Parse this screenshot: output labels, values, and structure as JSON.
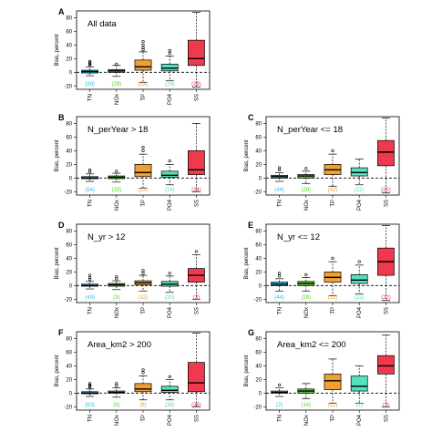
{
  "figure": {
    "ylabel": "Bias, percent",
    "categories": [
      "TN",
      "NOx",
      "TP",
      "PO4",
      "SS"
    ],
    "colors": {
      "TN": "#2ec4e6",
      "NOx": "#5ad12e",
      "TP": "#f0a032",
      "PO4": "#56e0bd",
      "SS": "#ef3a4d"
    }
  },
  "chart_data": [
    {
      "letter": "A",
      "title": "All data",
      "type": "box",
      "ylim": [
        -25,
        90
      ],
      "yticks": [
        -20,
        0,
        20,
        40,
        60,
        80
      ],
      "reference_line": 0,
      "categories": [
        "TN",
        "NOx",
        "TP",
        "PO4",
        "SS"
      ],
      "boxes": [
        {
          "cat": "TN",
          "lw": -5,
          "q1": -1,
          "med": 1,
          "q3": 3,
          "uw": 8,
          "outliers": [
            10,
            12,
            14,
            16
          ]
        },
        {
          "cat": "NOx",
          "lw": -6,
          "q1": 0,
          "med": 2,
          "q3": 4,
          "uw": 10,
          "outliers": [
            12
          ]
        },
        {
          "cat": "TP",
          "lw": -15,
          "q1": 3,
          "med": 8,
          "q3": 18,
          "uw": 30,
          "outliers": [
            33,
            36,
            40,
            45
          ]
        },
        {
          "cat": "PO4",
          "lw": -12,
          "q1": 2,
          "med": 6,
          "q3": 12,
          "uw": 24,
          "outliers": [
            28,
            32
          ]
        },
        {
          "cat": "SS",
          "lw": -22,
          "q1": 10,
          "med": 20,
          "q3": 47,
          "uw": 88,
          "outliers": []
        }
      ],
      "counts": [
        "(99)",
        "(29)",
        "(29)",
        "(29)",
        "(29)"
      ]
    },
    {
      "letter": "B",
      "title": "N_perYear > 18",
      "type": "box",
      "ylim": [
        -25,
        90
      ],
      "yticks": [
        -20,
        0,
        20,
        40,
        60,
        80
      ],
      "reference_line": 0,
      "categories": [
        "TN",
        "NOx",
        "TP",
        "PO4",
        "SS"
      ],
      "boxes": [
        {
          "cat": "TN",
          "lw": -5,
          "q1": -1,
          "med": 0,
          "q3": 2,
          "uw": 6,
          "outliers": [
            9,
            12
          ]
        },
        {
          "cat": "NOx",
          "lw": -6,
          "q1": -1,
          "med": 1,
          "q3": 3,
          "uw": 7,
          "outliers": [
            10
          ]
        },
        {
          "cat": "TP",
          "lw": -15,
          "q1": 2,
          "med": 8,
          "q3": 20,
          "uw": 35,
          "outliers": [
            40,
            45
          ]
        },
        {
          "cat": "PO4",
          "lw": -10,
          "q1": 1,
          "med": 4,
          "q3": 10,
          "uw": 20,
          "outliers": [
            25
          ]
        },
        {
          "cat": "SS",
          "lw": -20,
          "q1": 5,
          "med": 12,
          "q3": 40,
          "uw": 80,
          "outliers": []
        }
      ],
      "counts": [
        "(54)",
        "(33)",
        "(22)",
        "(14)",
        "(24)"
      ]
    },
    {
      "letter": "C",
      "title": "N_perYear <= 18",
      "type": "box",
      "ylim": [
        -25,
        90
      ],
      "yticks": [
        -20,
        0,
        20,
        40,
        60,
        80
      ],
      "reference_line": 0,
      "categories": [
        "TN",
        "NOx",
        "TP",
        "PO4",
        "SS"
      ],
      "boxes": [
        {
          "cat": "TN",
          "lw": -5,
          "q1": 0,
          "med": 2,
          "q3": 4,
          "uw": 8,
          "outliers": [
            12,
            15
          ]
        },
        {
          "cat": "NOx",
          "lw": -8,
          "q1": 0,
          "med": 3,
          "q3": 5,
          "uw": 10,
          "outliers": [
            14
          ]
        },
        {
          "cat": "TP",
          "lw": -12,
          "q1": 5,
          "med": 12,
          "q3": 20,
          "uw": 35,
          "outliers": [
            40
          ]
        },
        {
          "cat": "PO4",
          "lw": -10,
          "q1": 3,
          "med": 8,
          "q3": 15,
          "uw": 28,
          "outliers": []
        },
        {
          "cat": "SS",
          "lw": -22,
          "q1": 18,
          "med": 38,
          "q3": 55,
          "uw": 88,
          "outliers": []
        }
      ],
      "counts": [
        "(44)",
        "(29)",
        "(42)",
        "(22)",
        "(22)"
      ]
    },
    {
      "letter": "D",
      "title": "N_yr > 12",
      "type": "box",
      "ylim": [
        -25,
        90
      ],
      "yticks": [
        -20,
        0,
        20,
        40,
        60,
        80
      ],
      "reference_line": 0,
      "categories": [
        "TN",
        "NOx",
        "TP",
        "PO4",
        "SS"
      ],
      "boxes": [
        {
          "cat": "TN",
          "lw": -5,
          "q1": -1,
          "med": 0,
          "q3": 2,
          "uw": 6,
          "outliers": [
            9,
            12,
            15
          ]
        },
        {
          "cat": "NOx",
          "lw": -6,
          "q1": -1,
          "med": 1,
          "q3": 3,
          "uw": 7,
          "outliers": [
            10,
            13
          ]
        },
        {
          "cat": "TP",
          "lw": -8,
          "q1": 1,
          "med": 4,
          "q3": 7,
          "uw": 15,
          "outliers": [
            18,
            22
          ]
        },
        {
          "cat": "PO4",
          "lw": -10,
          "q1": -1,
          "med": 2,
          "q3": 6,
          "uw": 14,
          "outliers": [
            18
          ]
        },
        {
          "cat": "SS",
          "lw": -20,
          "q1": 5,
          "med": 15,
          "q3": 25,
          "uw": 45,
          "outliers": [
            50
          ]
        }
      ],
      "counts": [
        "(49)",
        "(3)",
        "(32)",
        "(20)",
        "(3)"
      ]
    },
    {
      "letter": "E",
      "title": "N_yr <= 12",
      "type": "box",
      "ylim": [
        -25,
        90
      ],
      "yticks": [
        -20,
        0,
        20,
        40,
        60,
        80
      ],
      "reference_line": 0,
      "categories": [
        "TN",
        "NOx",
        "TP",
        "PO4",
        "SS"
      ],
      "boxes": [
        {
          "cat": "TN",
          "lw": -8,
          "q1": 0,
          "med": 2,
          "q3": 5,
          "uw": 10,
          "outliers": [
            14,
            18
          ]
        },
        {
          "cat": "NOx",
          "lw": -8,
          "q1": 0,
          "med": 3,
          "q3": 6,
          "uw": 12,
          "outliers": [
            16
          ]
        },
        {
          "cat": "TP",
          "lw": -15,
          "q1": 5,
          "med": 12,
          "q3": 20,
          "uw": 35,
          "outliers": [
            40
          ]
        },
        {
          "cat": "PO4",
          "lw": -12,
          "q1": 3,
          "med": 8,
          "q3": 16,
          "uw": 30,
          "outliers": [
            35
          ]
        },
        {
          "cat": "SS",
          "lw": -22,
          "q1": 15,
          "med": 35,
          "q3": 55,
          "uw": 88,
          "outliers": []
        }
      ],
      "counts": [
        "(44)",
        "(29)",
        "(22)",
        "(22)",
        "(22)"
      ]
    },
    {
      "letter": "F",
      "title": "Area_km2 > 200",
      "type": "box",
      "ylim": [
        -25,
        90
      ],
      "yticks": [
        -20,
        0,
        20,
        40,
        60,
        80
      ],
      "reference_line": 0,
      "categories": [
        "TN",
        "NOx",
        "TP",
        "PO4",
        "SS"
      ],
      "boxes": [
        {
          "cat": "TN",
          "lw": -5,
          "q1": -1,
          "med": 0,
          "q3": 2,
          "uw": 6,
          "outliers": [
            8,
            10,
            12,
            14
          ]
        },
        {
          "cat": "NOx",
          "lw": -6,
          "q1": 0,
          "med": 1,
          "q3": 3,
          "uw": 8,
          "outliers": [
            11,
            14
          ]
        },
        {
          "cat": "TP",
          "lw": -10,
          "q1": 2,
          "med": 6,
          "q3": 14,
          "uw": 25,
          "outliers": [
            30,
            34
          ]
        },
        {
          "cat": "PO4",
          "lw": -10,
          "q1": 1,
          "med": 4,
          "q3": 10,
          "uw": 20,
          "outliers": [
            24
          ]
        },
        {
          "cat": "SS",
          "lw": -20,
          "q1": 2,
          "med": 15,
          "q3": 45,
          "uw": 88,
          "outliers": []
        }
      ],
      "counts": [
        "(63)",
        "(9)",
        "(8)",
        "(38)",
        "(38)"
      ]
    },
    {
      "letter": "G",
      "title": "Area_km2 <= 200",
      "type": "box",
      "ylim": [
        -25,
        90
      ],
      "yticks": [
        -20,
        0,
        20,
        40,
        60,
        80
      ],
      "reference_line": 0,
      "categories": [
        "TN",
        "NOx",
        "TP",
        "PO4",
        "SS"
      ],
      "boxes": [
        {
          "cat": "TN",
          "lw": -5,
          "q1": 0,
          "med": 1,
          "q3": 3,
          "uw": 8,
          "outliers": [
            12
          ]
        },
        {
          "cat": "NOx",
          "lw": -8,
          "q1": 0,
          "med": 3,
          "q3": 6,
          "uw": 14,
          "outliers": []
        },
        {
          "cat": "TP",
          "lw": -15,
          "q1": 5,
          "med": 18,
          "q3": 28,
          "uw": 50,
          "outliers": []
        },
        {
          "cat": "PO4",
          "lw": -15,
          "q1": 3,
          "med": 10,
          "q3": 25,
          "uw": 40,
          "outliers": []
        },
        {
          "cat": "SS",
          "lw": -20,
          "q1": 28,
          "med": 40,
          "q3": 55,
          "uw": 85,
          "outliers": []
        }
      ],
      "counts": [
        "(2)",
        "(14)",
        "(22)",
        "(2)",
        "(3)"
      ]
    }
  ]
}
